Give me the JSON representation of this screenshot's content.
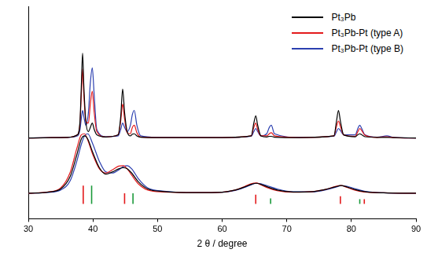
{
  "chart_data": {
    "type": "line",
    "x_label": "2 θ / degree",
    "xlim": [
      30,
      90
    ],
    "xticks": [
      30,
      40,
      50,
      60,
      70,
      80,
      90
    ],
    "ylim": [
      0,
      100
    ],
    "tick_labels": "x",
    "grid": false,
    "legend": "upper right",
    "series": [
      {
        "name": "Pt₃Pb",
        "color": "#000000",
        "x": [
          30,
          36,
          37.6,
          38.0,
          38.2,
          38.4,
          38.6,
          38.9,
          39.3,
          39.6,
          39.9,
          40.2,
          40.6,
          42,
          43.9,
          44.3,
          44.6,
          44.9,
          45.3,
          45.8,
          46.1,
          46.4,
          46.8,
          47.4,
          50,
          60,
          64.5,
          64.9,
          65.2,
          65.5,
          66,
          66.9,
          67.3,
          67.6,
          68.1,
          72,
          77.3,
          77.7,
          78.0,
          78.3,
          78.8,
          80.6,
          81.0,
          81.3,
          81.6,
          82.1,
          84,
          85.5,
          86.5,
          90
        ],
        "values": [
          38,
          38.3,
          39.5,
          46,
          62,
          78,
          62,
          46,
          41,
          43,
          45,
          42,
          39.5,
          38.5,
          39.5,
          48,
          61,
          50,
          41,
          39,
          39.8,
          40,
          39,
          38.4,
          38.2,
          38.2,
          39,
          45,
          48.5,
          44,
          39,
          38.5,
          38.8,
          38.8,
          38.4,
          38.2,
          39,
          46,
          51,
          46,
          39.5,
          38.6,
          39.5,
          40,
          39.5,
          38.6,
          38.3,
          38.3,
          38.2,
          38
        ]
      },
      {
        "name": "Pt₃Pb-Pt (type A)",
        "color": "#e31a1c",
        "x": [
          30,
          36,
          37.6,
          38.0,
          38.2,
          38.4,
          38.6,
          38.9,
          39.3,
          39.6,
          39.9,
          40.2,
          40.6,
          42,
          43.9,
          44.3,
          44.6,
          44.9,
          45.3,
          45.8,
          46.1,
          46.4,
          46.8,
          47.4,
          50,
          60,
          64.5,
          64.9,
          65.2,
          65.5,
          66,
          66.9,
          67.3,
          67.6,
          68.1,
          72,
          77.3,
          77.7,
          78.0,
          78.3,
          78.8,
          80.6,
          81.0,
          81.3,
          81.6,
          82.1,
          84,
          85.5,
          86.5,
          90
        ],
        "values": [
          38,
          38.3,
          39.5,
          45,
          58,
          70.5,
          58,
          46,
          45,
          54,
          60,
          50,
          41,
          38.5,
          39.5,
          46,
          54,
          47,
          40.5,
          40,
          43,
          44,
          40.5,
          38.5,
          38.2,
          38.2,
          39,
          43,
          45,
          42,
          39,
          39,
          40,
          40.5,
          39,
          38.2,
          39,
          43.5,
          46,
          43.5,
          39.5,
          38.8,
          41,
          42.5,
          41.5,
          39.3,
          38.3,
          38.6,
          38.2,
          38
        ]
      },
      {
        "name": "Pt₃Pb-Pt (type B)",
        "color": "#2b3fb0",
        "x": [
          30,
          36,
          37.6,
          38.0,
          38.2,
          38.4,
          38.6,
          38.9,
          39.3,
          39.6,
          39.9,
          40.2,
          40.6,
          42,
          43.9,
          44.3,
          44.6,
          44.9,
          45.3,
          45.8,
          46.1,
          46.4,
          46.8,
          47.4,
          50,
          60,
          64.5,
          64.9,
          65.2,
          65.5,
          66,
          66.9,
          67.3,
          67.6,
          68.1,
          72,
          77.3,
          77.7,
          78.0,
          78.3,
          78.8,
          80.6,
          81.0,
          81.3,
          81.6,
          82.1,
          84,
          85.5,
          86.5,
          90
        ],
        "values": [
          38,
          38.3,
          39,
          42,
          47,
          51,
          48,
          44,
          50,
          64,
          71,
          58,
          42,
          38.6,
          39,
          42,
          45,
          43,
          41,
          44,
          49,
          51,
          44,
          39,
          38.3,
          38.2,
          38.8,
          41,
          42.5,
          41,
          39,
          40,
          43,
          44,
          40,
          38.3,
          38.8,
          41,
          42.5,
          41.5,
          39.5,
          39.5,
          42.5,
          44,
          42.5,
          39.5,
          38.4,
          39,
          38.3,
          38
        ]
      },
      {
        "name": "Pt₃Pb",
        "color": "#000000",
        "x": [
          30,
          33,
          35,
          36.5,
          37.5,
          38.2,
          38.7,
          39.2,
          40,
          41,
          42,
          43,
          44,
          44.7,
          45.3,
          46,
          47,
          48.5,
          51,
          56,
          60,
          62,
          63.5,
          64.5,
          65.3,
          66,
          67,
          68.5,
          71,
          74,
          76,
          77.5,
          78.4,
          79.3,
          80.5,
          82,
          85,
          90
        ],
        "values": [
          12,
          12.5,
          14,
          20,
          30,
          37.5,
          39,
          37.5,
          31,
          24,
          21,
          22,
          23.5,
          24,
          23.5,
          21.5,
          17.5,
          14,
          12.8,
          12.3,
          12.5,
          13.5,
          15,
          16.2,
          16.7,
          16.2,
          15,
          13.5,
          12.6,
          12.8,
          13.8,
          15,
          15.6,
          15,
          13.8,
          12.8,
          12.2,
          12
        ]
      },
      {
        "name": "Pt₃Pb-Pt (type A)",
        "color": "#e31a1c",
        "x": [
          30,
          33,
          35,
          36.5,
          37.5,
          38.2,
          38.7,
          39.2,
          40,
          41,
          42,
          43,
          44,
          44.7,
          45.3,
          46,
          47,
          48.5,
          51,
          56,
          60,
          62,
          63.5,
          64.5,
          65.3,
          66,
          67,
          68.5,
          71,
          74,
          76,
          77.5,
          78.4,
          79.3,
          80.5,
          82,
          85,
          90
        ],
        "values": [
          12,
          12.6,
          14.5,
          22,
          33,
          39.5,
          40,
          37,
          30,
          23.5,
          21.5,
          23,
          24.8,
          25,
          23.5,
          20.5,
          16.5,
          13.5,
          12.6,
          12.3,
          12.5,
          13.5,
          15.2,
          16.5,
          16.8,
          16,
          14.6,
          13.2,
          12.5,
          12.8,
          13.8,
          15.2,
          15.6,
          14.8,
          13.5,
          12.6,
          12.2,
          12
        ]
      },
      {
        "name": "Pt₃Pb-Pt (type B)",
        "color": "#2b3fb0",
        "x": [
          30,
          33,
          35,
          36.5,
          37.5,
          38.2,
          38.7,
          39.2,
          40,
          41,
          42,
          43,
          44,
          44.7,
          45.3,
          46,
          47,
          48.5,
          51,
          56,
          60,
          62,
          63.5,
          64.5,
          65.3,
          66,
          67,
          68.5,
          71,
          74,
          76,
          77.5,
          78.4,
          79.3,
          80.5,
          82,
          85,
          90
        ],
        "values": [
          12,
          12.4,
          13.5,
          18,
          27,
          35,
          39,
          40,
          35,
          27,
          22,
          21.5,
          23,
          24.5,
          25,
          23.5,
          19,
          14.5,
          13,
          12.3,
          12.5,
          13.3,
          14.8,
          16,
          16.7,
          16.5,
          15.5,
          14,
          12.7,
          12.7,
          13.6,
          14.8,
          15.5,
          15.3,
          14.2,
          13,
          12.2,
          12
        ]
      },
      {
        "type": "stick",
        "color": "#e31a1c",
        "base": 7,
        "x": [
          38.5,
          44.9,
          65.2,
          78.3,
          82.0
        ],
        "values": [
          15.6,
          12,
          11.3,
          10.6,
          9.2
        ]
      },
      {
        "type": "stick",
        "color": "#1a9a3a",
        "base": 7,
        "x": [
          39.8,
          46.2,
          67.5,
          81.3
        ],
        "values": [
          15.6,
          12,
          9.6,
          9.2
        ]
      }
    ]
  }
}
